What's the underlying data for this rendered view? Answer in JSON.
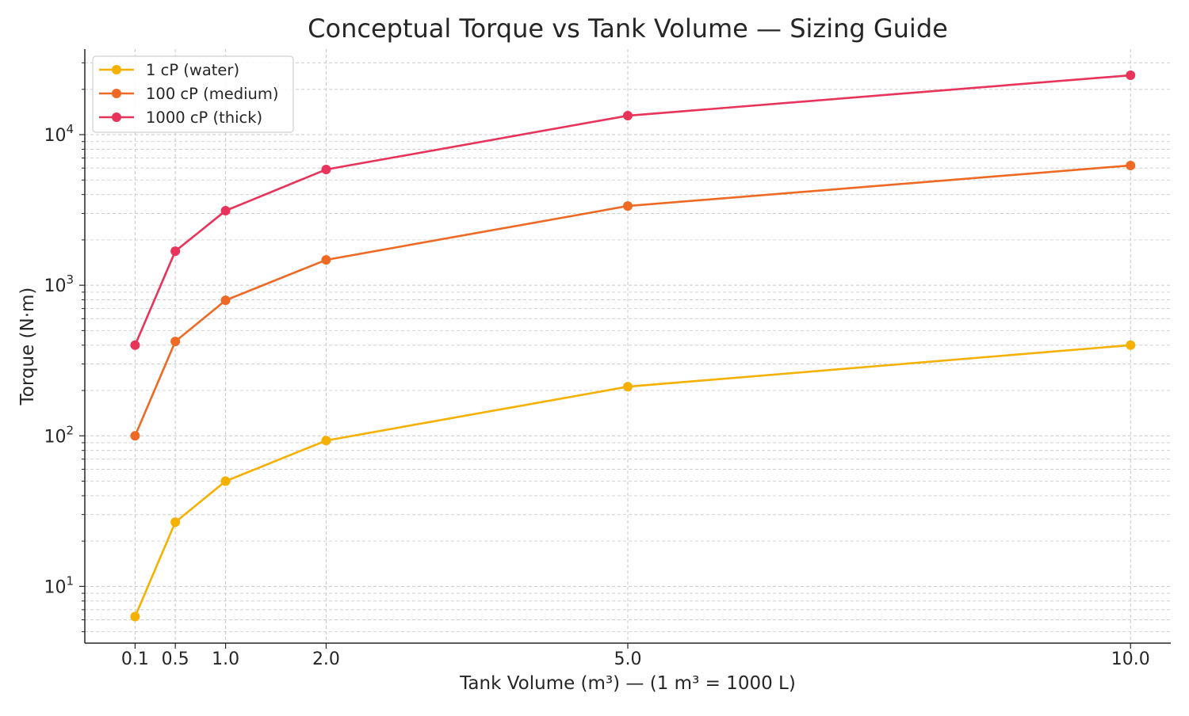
{
  "chart_data": {
    "type": "line",
    "title": "Conceptual Torque vs Tank Volume — Sizing Guide",
    "xlabel": "Tank Volume (m³) — (1 m³ = 1000 L)",
    "ylabel": "Torque (N·m)",
    "x": [
      0.1,
      0.5,
      1.0,
      2.0,
      5.0,
      10.0
    ],
    "x_tick_labels": [
      "0.1",
      "0.5",
      "1.0",
      "2.0",
      "5.0",
      "10.0"
    ],
    "xlim": [
      -0.4,
      10.4
    ],
    "ylim": [
      4.2,
      37000
    ],
    "y_scale": "log",
    "y_ticks": [
      10,
      100,
      1000,
      10000
    ],
    "y_tick_labels": [
      {
        "base": "10",
        "exp": "1"
      },
      {
        "base": "10",
        "exp": "2"
      },
      {
        "base": "10",
        "exp": "3"
      },
      {
        "base": "10",
        "exp": "4"
      }
    ],
    "grid": true,
    "legend_position": "top-left",
    "series": [
      {
        "name": "1 cP (water)",
        "color": "#F5B000",
        "values": [
          6.3,
          26.7,
          50,
          93,
          212,
          400
        ]
      },
      {
        "name": "100 cP (medium)",
        "color": "#EE6A24",
        "values": [
          100,
          423,
          794,
          1474,
          3360,
          6240
        ]
      },
      {
        "name": "1000 cP (thick)",
        "color": "#E8335A",
        "values": [
          400,
          1684,
          3125,
          5870,
          13370,
          24800
        ]
      }
    ]
  }
}
